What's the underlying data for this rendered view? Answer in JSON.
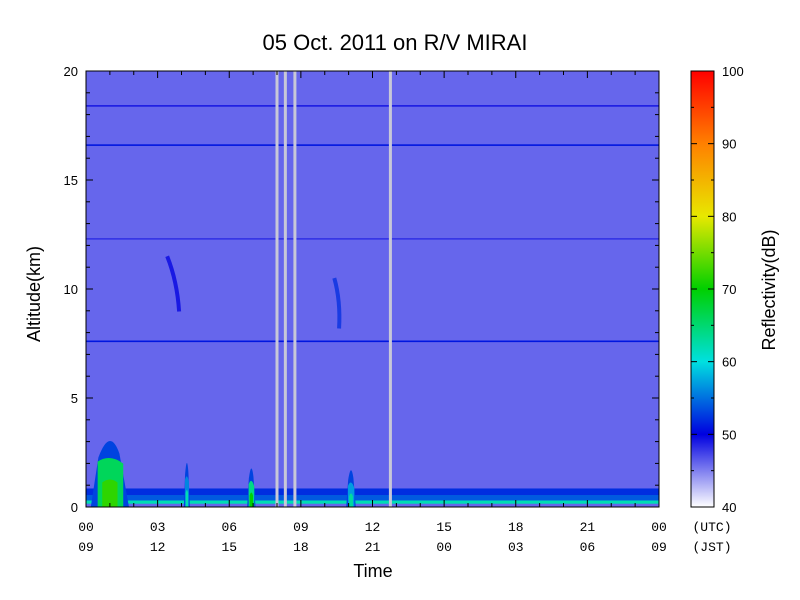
{
  "chart_data": {
    "type": "heatmap",
    "title": "05 Oct. 2011  on R/V MIRAI",
    "xlabel": "Time",
    "ylabel": "Altitude(km)",
    "ylim": [
      0,
      20
    ],
    "yticks": [
      0,
      5,
      10,
      15,
      20
    ],
    "xlim_hours_utc": [
      0,
      24
    ],
    "xticks_hours_utc": [
      0,
      3,
      6,
      9,
      12,
      15,
      18,
      21,
      24
    ],
    "xtick_labels_utc": [
      "00",
      "03",
      "06",
      "09",
      "12",
      "15",
      "18",
      "21",
      "00"
    ],
    "xtick_labels_jst": [
      "09",
      "12",
      "15",
      "18",
      "21",
      "00",
      "03",
      "06",
      "09"
    ],
    "x_unit_utc": "(UTC)",
    "x_unit_jst": "(JST)",
    "colorbar": {
      "label": "Reflectivity(dB)",
      "range": [
        40,
        100
      ],
      "ticks": [
        40,
        50,
        60,
        70,
        80,
        90,
        100
      ],
      "colors": [
        "#ffffff",
        "#0000e0",
        "#00e0e0",
        "#00d000",
        "#e8e800",
        "#ff8000",
        "#ff0000"
      ]
    },
    "background_reflectivity_db": 46,
    "horizontal_bands_km": [
      {
        "altitude": 18.4,
        "db": 49
      },
      {
        "altitude": 16.6,
        "db": 51
      },
      {
        "altitude": 12.3,
        "db": 48
      },
      {
        "altitude": 7.6,
        "db": 51
      }
    ],
    "near_surface_layers_km": [
      {
        "from": 0.15,
        "to": 0.3,
        "db": 62
      },
      {
        "from": 0.3,
        "to": 0.55,
        "db": 54
      },
      {
        "from": 0.55,
        "to": 0.85,
        "db": 52
      }
    ],
    "data_gaps_hours_utc": [
      8.0,
      8.35,
      8.75,
      12.75
    ],
    "echoes": [
      {
        "name": "low-cloud-01h",
        "t_start": 0.2,
        "t_end": 1.8,
        "top_km": 3.5,
        "max_db": 72
      },
      {
        "name": "cell-0415h",
        "t_start": 4.1,
        "t_end": 4.35,
        "top_km": 2.3,
        "max_db": 62
      },
      {
        "name": "cell-0650h",
        "t_start": 6.75,
        "t_end": 7.1,
        "top_km": 2.0,
        "max_db": 70
      },
      {
        "name": "cell-1105h",
        "t_start": 10.9,
        "t_end": 11.3,
        "top_km": 1.9,
        "max_db": 63
      },
      {
        "name": "upper-streak-0330h",
        "t_start": 3.4,
        "t_end": 3.9,
        "top_km": 11.5,
        "max_db": 50
      },
      {
        "name": "upper-streak-1045h",
        "t_start": 10.4,
        "t_end": 10.6,
        "top_km": 10.5,
        "max_db": 52
      }
    ]
  }
}
